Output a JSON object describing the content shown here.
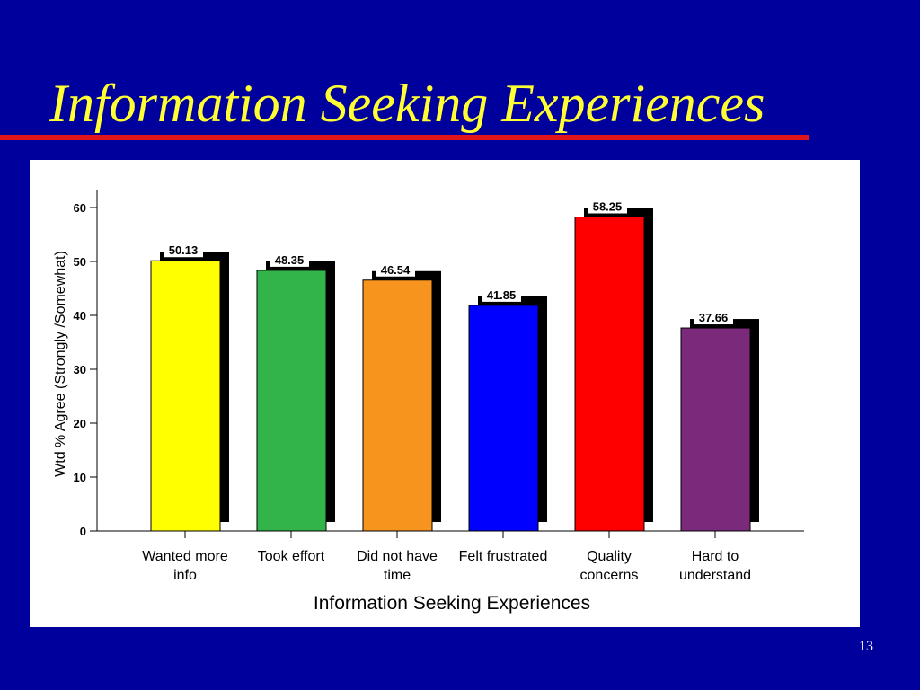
{
  "slide": {
    "title": "Information Seeking Experiences",
    "page_number": "13"
  },
  "chart_data": {
    "type": "bar",
    "xlabel": "Information Seeking Experiences",
    "ylabel": "Wtd % Agree (Strongly /Somewhat)",
    "categories": [
      "Wanted more info",
      "Took effort",
      "Did not have time",
      "Felt frustrated",
      "Quality concerns",
      "Hard to understand"
    ],
    "values": [
      50.13,
      48.35,
      46.54,
      41.85,
      58.25,
      37.66
    ],
    "colors": [
      "#ffff00",
      "#33b44a",
      "#f7941d",
      "#0000ff",
      "#ff0000",
      "#7b2a7b"
    ],
    "ylim": [
      0,
      60
    ],
    "yticks": [
      0,
      10,
      20,
      30,
      40,
      50,
      60
    ]
  }
}
